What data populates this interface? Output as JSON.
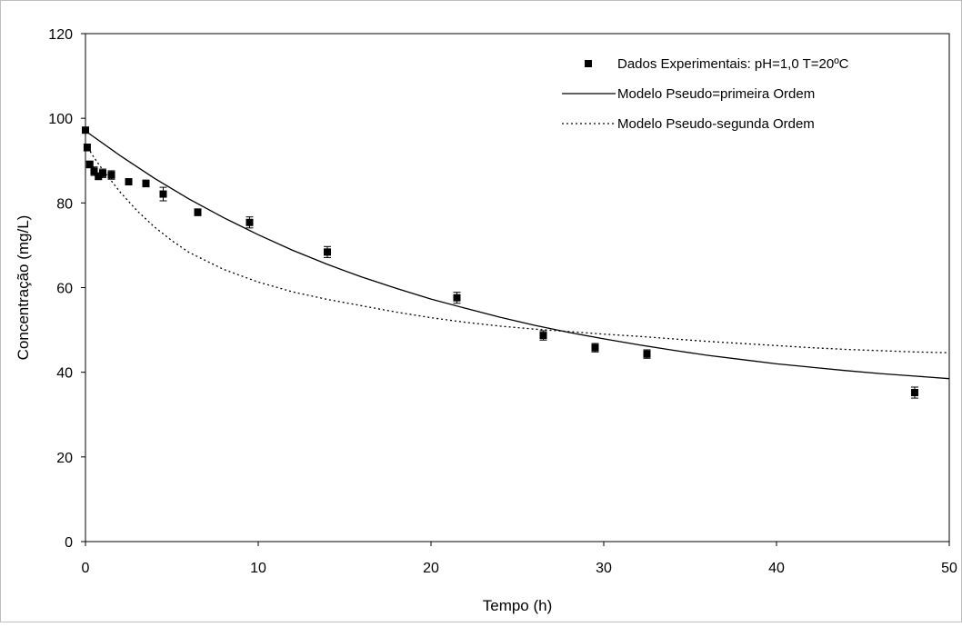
{
  "chart_data": {
    "type": "scatter",
    "title": "",
    "xlabel": "Tempo (h)",
    "ylabel": "Concentração (mg/L)",
    "xlim": [
      0,
      50
    ],
    "ylim": [
      0,
      120
    ],
    "xticks": [
      0,
      10,
      20,
      30,
      40,
      50
    ],
    "yticks": [
      0,
      20,
      40,
      60,
      80,
      100,
      120
    ],
    "grid": false,
    "legend_position": "top-right",
    "series": [
      {
        "name": "Dados Experimentais: pH=1,0 T=20ºC",
        "kind": "markers",
        "marker": "square",
        "color": "#000000",
        "x": [
          0.0,
          0.1,
          0.25,
          0.5,
          0.75,
          1.0,
          1.5,
          2.5,
          3.5,
          4.5,
          6.5,
          9.5,
          14.0,
          21.5,
          26.5,
          29.5,
          32.5,
          48.0
        ],
        "y": [
          97.2,
          93.1,
          89.1,
          87.5,
          86.3,
          87.0,
          86.6,
          85.0,
          84.6,
          82.1,
          77.8,
          75.4,
          68.4,
          57.6,
          48.7,
          45.8,
          44.3,
          35.2
        ],
        "error": [
          0.6,
          0.8,
          0.8,
          1.0,
          0.8,
          1.0,
          1.0,
          0.6,
          0.8,
          1.6,
          0.8,
          1.3,
          1.3,
          1.3,
          1.1,
          1.0,
          1.0,
          1.3
        ]
      },
      {
        "name": "Modelo Pseudo=primeira Ordem",
        "kind": "line",
        "style": "solid",
        "color": "#000000",
        "x": [
          0,
          2,
          4,
          6,
          8,
          10,
          12,
          14,
          16,
          18,
          20,
          22,
          24,
          26,
          28,
          30,
          32,
          34,
          36,
          38,
          40,
          42,
          44,
          46,
          48,
          50
        ],
        "y": [
          97.0,
          91.2,
          85.8,
          80.9,
          76.5,
          72.5,
          68.8,
          65.5,
          62.5,
          59.8,
          57.3,
          55.1,
          53.0,
          51.1,
          49.4,
          47.9,
          46.5,
          45.2,
          44.0,
          43.0,
          42.0,
          41.2,
          40.4,
          39.7,
          39.1,
          38.5
        ]
      },
      {
        "name": "Modelo Pseudo-segunda Ordem",
        "kind": "line",
        "style": "dotted",
        "color": "#000000",
        "x": [
          0,
          0.5,
          1,
          2,
          3,
          4,
          5,
          6,
          8,
          10,
          12,
          14,
          16,
          18,
          20,
          22,
          24,
          26,
          28,
          30,
          32,
          34,
          36,
          38,
          40,
          42,
          44,
          46,
          48,
          50
        ],
        "y": [
          94.0,
          90.7,
          87.8,
          82.6,
          78.1,
          74.3,
          71.1,
          68.3,
          64.3,
          61.3,
          59.0,
          57.2,
          55.7,
          54.2,
          52.9,
          51.8,
          50.9,
          50.2,
          49.6,
          49.0,
          48.5,
          47.9,
          47.3,
          46.8,
          46.3,
          45.8,
          45.4,
          45.1,
          44.8,
          44.6
        ]
      }
    ]
  }
}
